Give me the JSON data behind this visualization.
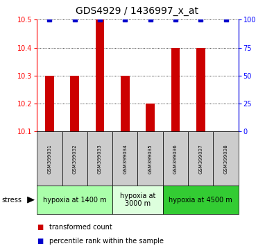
{
  "title": "GDS4929 / 1436997_x_at",
  "samples": [
    "GSM399031",
    "GSM399032",
    "GSM399033",
    "GSM399034",
    "GSM399035",
    "GSM399036",
    "GSM399037",
    "GSM399038"
  ],
  "bar_values": [
    10.3,
    10.3,
    10.5,
    10.3,
    10.2,
    10.4,
    10.4,
    10.1
  ],
  "bar_bottom": 10.1,
  "percentile_values": [
    100,
    100,
    100,
    100,
    100,
    100,
    100,
    100
  ],
  "ylim": [
    10.1,
    10.5
  ],
  "y2lim": [
    0,
    100
  ],
  "yticks": [
    10.1,
    10.2,
    10.3,
    10.4,
    10.5
  ],
  "y2ticks": [
    0,
    25,
    50,
    75,
    100
  ],
  "bar_color": "#cc0000",
  "dot_color": "#0000cc",
  "groups": [
    {
      "label": "hypoxia at 1400 m",
      "start": 0,
      "end": 3,
      "color": "#aaffaa"
    },
    {
      "label": "hypoxia at\n3000 m",
      "start": 3,
      "end": 5,
      "color": "#ddffdd"
    },
    {
      "label": "hypoxia at 4500 m",
      "start": 5,
      "end": 8,
      "color": "#33cc33"
    }
  ],
  "stress_label": "stress",
  "legend_bar_label": "transformed count",
  "legend_dot_label": "percentile rank within the sample",
  "sample_box_color": "#cccccc",
  "title_fontsize": 10,
  "tick_fontsize": 7,
  "sample_fontsize": 5,
  "group_fontsize": 7,
  "legend_fontsize": 7
}
